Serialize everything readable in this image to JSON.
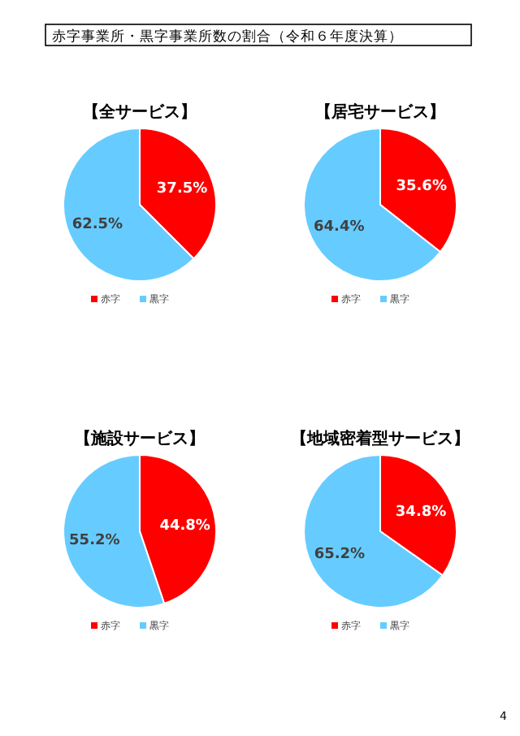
{
  "chart_data": [
    {
      "type": "pie",
      "title": "【全サービス】",
      "categories": [
        "赤字",
        "黒字"
      ],
      "values": [
        37.5,
        62.5
      ],
      "colors": [
        "#ff0000",
        "#66ccff"
      ],
      "value_labels": [
        "37.5%",
        "62.5%"
      ],
      "legend": "bottom",
      "annotations": [
        "赤字事業所・黒字事業所数の割合（令和６年度決算）"
      ]
    },
    {
      "type": "pie",
      "title": "【居宅サービス】",
      "categories": [
        "赤字",
        "黒字"
      ],
      "values": [
        35.6,
        64.4
      ],
      "colors": [
        "#ff0000",
        "#66ccff"
      ],
      "value_labels": [
        "35.6%",
        "64.4%"
      ],
      "legend": "bottom"
    },
    {
      "type": "pie",
      "title": "【施設サービス】",
      "categories": [
        "赤字",
        "黒字"
      ],
      "values": [
        44.8,
        55.2
      ],
      "colors": [
        "#ff0000",
        "#66ccff"
      ],
      "value_labels": [
        "44.8%",
        "55.2%"
      ],
      "legend": "bottom"
    },
    {
      "type": "pie",
      "title": "【地域密着型サービス】",
      "categories": [
        "赤字",
        "黒字"
      ],
      "values": [
        34.8,
        65.2
      ],
      "colors": [
        "#ff0000",
        "#66ccff"
      ],
      "value_labels": [
        "34.8%",
        "65.2%"
      ],
      "legend": "bottom",
      "annotations": [
        "4"
      ]
    }
  ]
}
